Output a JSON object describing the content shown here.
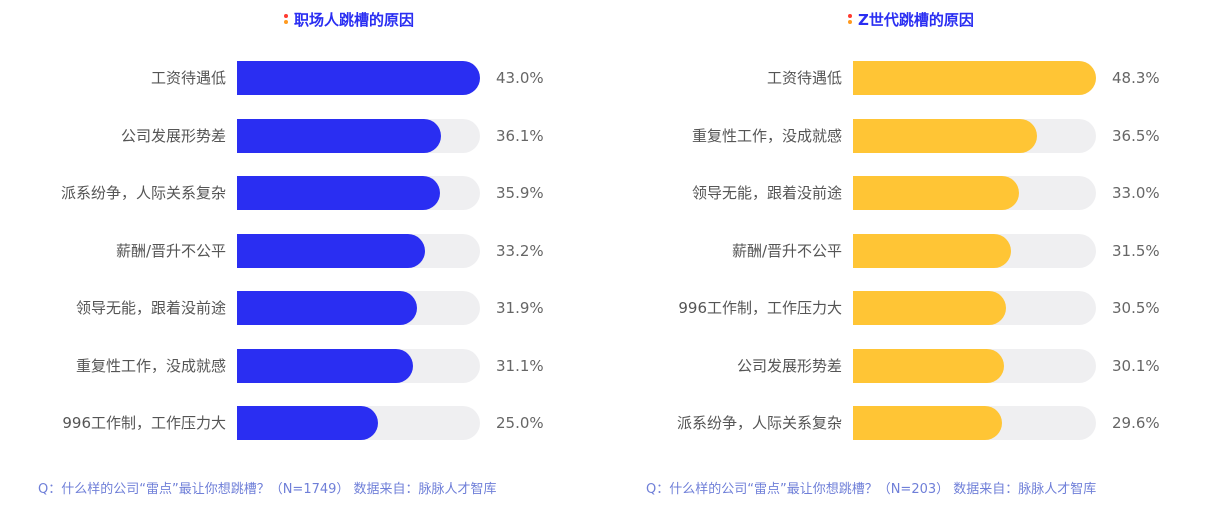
{
  "colors": {
    "left_bar": "#2a2ef2",
    "right_bar": "#ffc535",
    "track": "#efeff1",
    "title_blue": "#2a2ef2",
    "dot_red": "#ff3b30",
    "dot_orange": "#ff9a1f"
  },
  "chart_data": [
    {
      "type": "bar",
      "orientation": "horizontal",
      "title": "职场人跳槽的原因",
      "categories": [
        "工资待遇低",
        "公司发展形势差",
        "派系纷争，人际关系复杂",
        "薪酬/晋升不公平",
        "领导无能，跟着没前途",
        "重复性工作，没成就感",
        "996工作制，工作压力大"
      ],
      "values": [
        43.0,
        36.1,
        35.9,
        33.2,
        31.9,
        31.1,
        25.0
      ],
      "value_labels": [
        "43.0%",
        "36.1%",
        "35.9%",
        "33.2%",
        "31.9%",
        "31.1%",
        "25.0%"
      ],
      "xlim": [
        0,
        43.0
      ],
      "bar_color": "#2a2ef2",
      "footnote": "Q：什么样的公司“雷点”最让你想跳槽？（N=1749） 数据来自：脉脉人才智库"
    },
    {
      "type": "bar",
      "orientation": "horizontal",
      "title": "Z世代跳槽的原因",
      "categories": [
        "工资待遇低",
        "重复性工作，没成就感",
        "领导无能，跟着没前途",
        "薪酬/晋升不公平",
        "996工作制，工作压力大",
        "公司发展形势差",
        "派系纷争，人际关系复杂"
      ],
      "values": [
        48.3,
        36.5,
        33.0,
        31.5,
        30.5,
        30.1,
        29.6
      ],
      "value_labels": [
        "48.3%",
        "36.5%",
        "33.0%",
        "31.5%",
        "30.5%",
        "30.1%",
        "29.6%"
      ],
      "xlim": [
        0,
        48.3
      ],
      "bar_color": "#ffc535",
      "footnote": "Q：什么样的公司“雷点”最让你想跳槽？（N=203）   数据来自：脉脉人才智库"
    }
  ]
}
